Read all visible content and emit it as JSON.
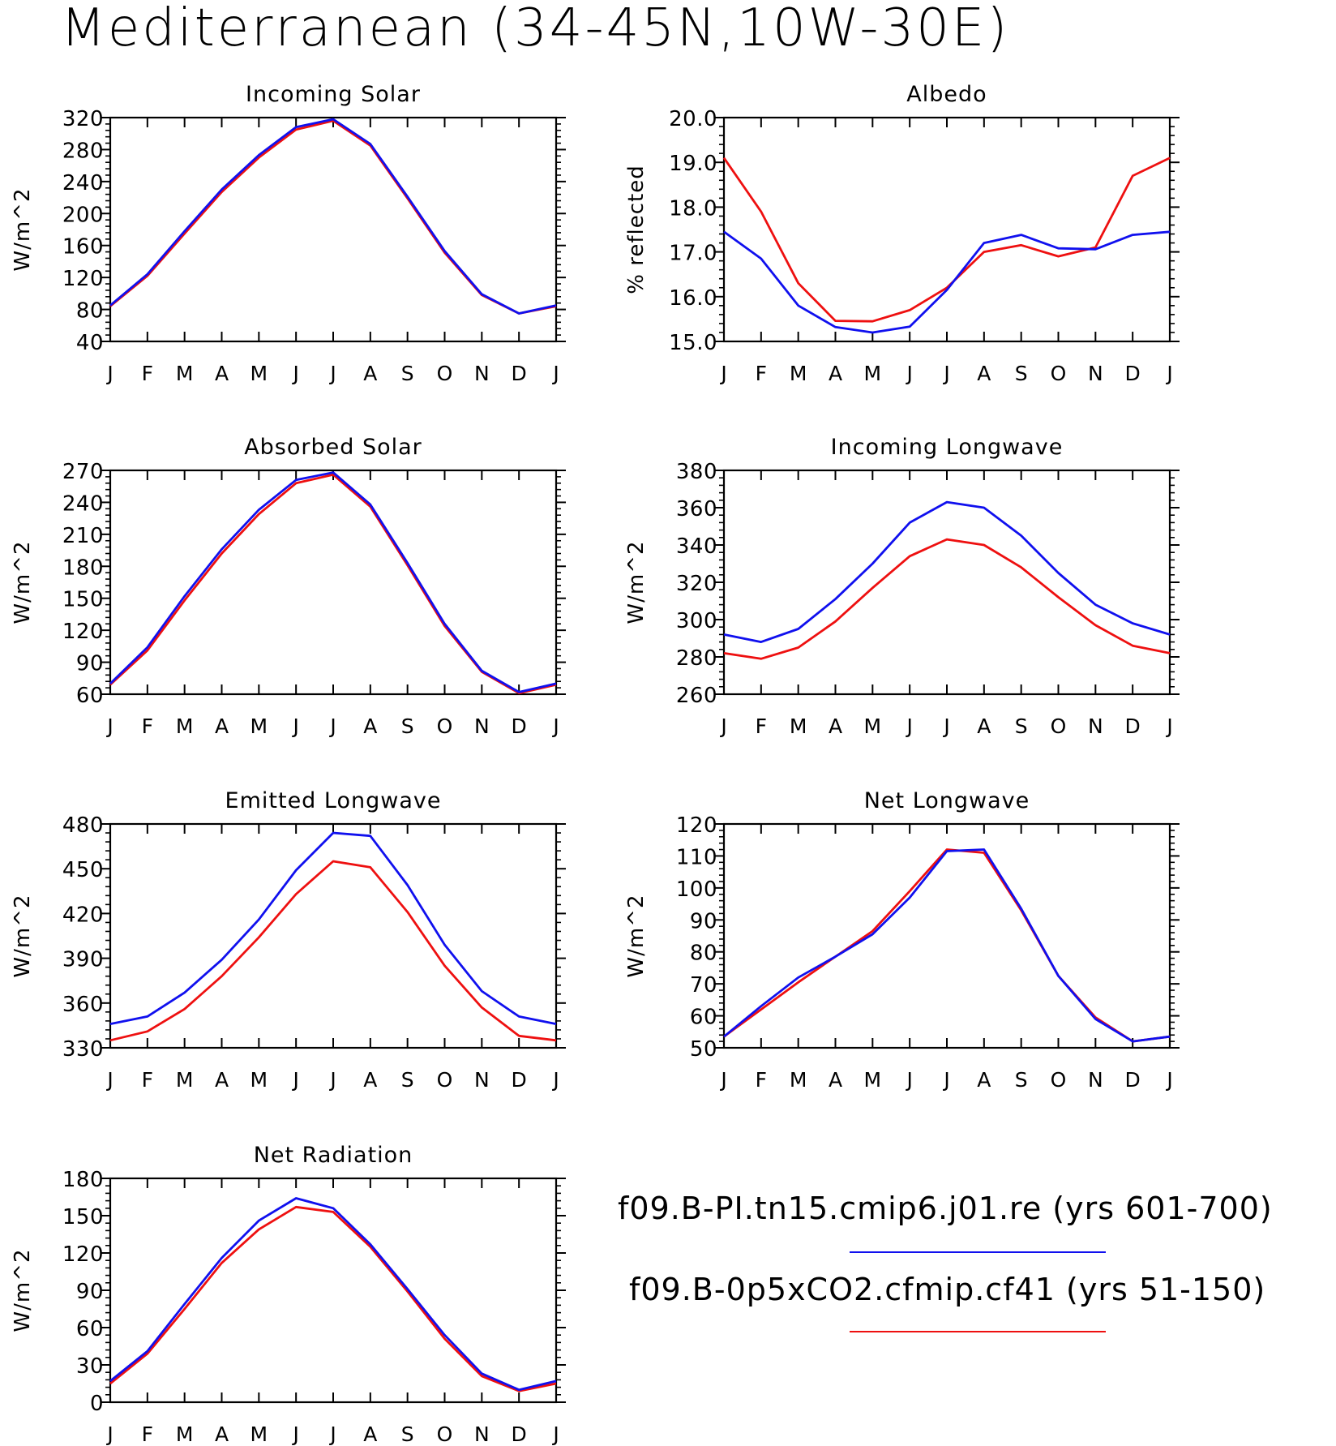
{
  "title": "Mediterranean (34-45N,10W-30E)",
  "colors": {
    "series_blue": "#1010ee",
    "series_red": "#ee1010"
  },
  "legend": [
    {
      "label": "f09.B-PI.tn15.cmip6.j01.re (yrs 601-700)",
      "color": "#1010ee"
    },
    {
      "label": "f09.B-0p5xCO2.cfmip.cf41 (yrs 51-150)",
      "color": "#ee1010"
    }
  ],
  "chart_data": [
    {
      "type": "line",
      "title": "Incoming Solar",
      "ylabel": "W/m^2",
      "ylim": [
        40,
        320
      ],
      "yticks": [
        40,
        80,
        120,
        160,
        200,
        240,
        280,
        320
      ],
      "yticklabels": [
        "40",
        "80",
        "120",
        "160",
        "200",
        "240",
        "280",
        "320"
      ],
      "categories": [
        "J",
        "F",
        "M",
        "A",
        "M",
        "J",
        "J",
        "A",
        "S",
        "O",
        "N",
        "D",
        "J"
      ],
      "series": [
        {
          "color": "blue",
          "values": [
            85,
            124,
            178,
            230,
            273,
            308,
            318,
            287,
            221,
            153,
            99,
            75,
            85
          ]
        },
        {
          "color": "red",
          "values": [
            84,
            122,
            175,
            227,
            270,
            305,
            316,
            285,
            219,
            151,
            98,
            75,
            84
          ]
        }
      ]
    },
    {
      "type": "line",
      "title": "Albedo",
      "ylabel": "% reflected",
      "ylim": [
        15,
        20
      ],
      "yticks": [
        15,
        16,
        17,
        18,
        19,
        20
      ],
      "yticklabels": [
        "15.0",
        "16.0",
        "17.0",
        "18.0",
        "19.0",
        "20.0"
      ],
      "categories": [
        "J",
        "F",
        "M",
        "A",
        "M",
        "J",
        "J",
        "A",
        "S",
        "O",
        "N",
        "D",
        "J"
      ],
      "series": [
        {
          "color": "blue",
          "values": [
            17.45,
            16.85,
            15.8,
            15.32,
            15.2,
            15.33,
            16.15,
            17.2,
            17.38,
            17.08,
            17.06,
            17.38,
            17.45
          ]
        },
        {
          "color": "red",
          "values": [
            19.1,
            17.9,
            16.3,
            15.46,
            15.45,
            15.7,
            16.2,
            17.0,
            17.15,
            16.9,
            17.1,
            18.7,
            19.1
          ]
        }
      ]
    },
    {
      "type": "line",
      "title": "Absorbed Solar",
      "ylabel": "W/m^2",
      "ylim": [
        60,
        270
      ],
      "yticks": [
        60,
        90,
        120,
        150,
        180,
        210,
        240,
        270
      ],
      "yticklabels": [
        "60",
        "90",
        "120",
        "150",
        "180",
        "210",
        "240",
        "270"
      ],
      "categories": [
        "J",
        "F",
        "M",
        "A",
        "M",
        "J",
        "J",
        "A",
        "S",
        "O",
        "N",
        "D",
        "J"
      ],
      "series": [
        {
          "color": "blue",
          "values": [
            70,
            104,
            152,
            196,
            233,
            261,
            268,
            238,
            183,
            126,
            82,
            62,
            70
          ]
        },
        {
          "color": "red",
          "values": [
            69,
            101,
            148,
            192,
            229,
            258,
            266,
            236,
            181,
            124,
            81,
            61,
            69
          ]
        }
      ]
    },
    {
      "type": "line",
      "title": "Incoming Longwave",
      "ylabel": "W/m^2",
      "ylim": [
        260,
        380
      ],
      "yticks": [
        260,
        280,
        300,
        320,
        340,
        360,
        380
      ],
      "yticklabels": [
        "260",
        "280",
        "300",
        "320",
        "340",
        "360",
        "380"
      ],
      "categories": [
        "J",
        "F",
        "M",
        "A",
        "M",
        "J",
        "J",
        "A",
        "S",
        "O",
        "N",
        "D",
        "J"
      ],
      "series": [
        {
          "color": "blue",
          "values": [
            292,
            288,
            295,
            311,
            330,
            352,
            363,
            360,
            345,
            325,
            308,
            298,
            292
          ]
        },
        {
          "color": "red",
          "values": [
            282,
            279,
            285,
            299,
            317,
            334,
            343,
            340,
            328,
            312,
            297,
            286,
            282
          ]
        }
      ]
    },
    {
      "type": "line",
      "title": "Emitted Longwave",
      "ylabel": "W/m^2",
      "ylim": [
        330,
        480
      ],
      "yticks": [
        330,
        360,
        390,
        420,
        450,
        480
      ],
      "yticklabels": [
        "330",
        "360",
        "390",
        "420",
        "450",
        "480"
      ],
      "categories": [
        "J",
        "F",
        "M",
        "A",
        "M",
        "J",
        "J",
        "A",
        "S",
        "O",
        "N",
        "D",
        "J"
      ],
      "series": [
        {
          "color": "blue",
          "values": [
            346,
            351,
            367,
            389,
            416,
            449,
            474,
            472,
            439,
            399,
            368,
            351,
            346
          ]
        },
        {
          "color": "red",
          "values": [
            335,
            341,
            356,
            378,
            404,
            433,
            455,
            451,
            421,
            385,
            357,
            338,
            335
          ]
        }
      ]
    },
    {
      "type": "line",
      "title": "Net Longwave",
      "ylabel": "W/m^2",
      "ylim": [
        50,
        120
      ],
      "yticks": [
        50,
        60,
        70,
        80,
        90,
        100,
        110,
        120
      ],
      "yticklabels": [
        "50",
        "60",
        "70",
        "80",
        "90",
        "100",
        "110",
        "120"
      ],
      "categories": [
        "J",
        "F",
        "M",
        "A",
        "M",
        "J",
        "J",
        "A",
        "S",
        "O",
        "N",
        "D",
        "J"
      ],
      "series": [
        {
          "color": "blue",
          "values": [
            53.5,
            63,
            72,
            78.5,
            85.5,
            97,
            111.5,
            112,
            93.5,
            72.5,
            59,
            52,
            53.5
          ]
        },
        {
          "color": "red",
          "values": [
            53.5,
            62,
            70.5,
            78.5,
            86.5,
            99,
            112,
            111,
            93,
            72.5,
            59.5,
            52,
            53.5
          ]
        }
      ]
    },
    {
      "type": "line",
      "title": "Net Radiation",
      "ylabel": "W/m^2",
      "ylim": [
        0,
        180
      ],
      "yticks": [
        0,
        30,
        60,
        90,
        120,
        150,
        180
      ],
      "yticklabels": [
        "0",
        "30",
        "60",
        "90",
        "120",
        "150",
        "180"
      ],
      "categories": [
        "J",
        "F",
        "M",
        "A",
        "M",
        "J",
        "J",
        "A",
        "S",
        "O",
        "N",
        "D",
        "J"
      ],
      "series": [
        {
          "color": "blue",
          "values": [
            17,
            41,
            79,
            116,
            146,
            164,
            156,
            127,
            91,
            54,
            23,
            10,
            17
          ]
        },
        {
          "color": "red",
          "values": [
            15,
            39,
            75,
            112,
            139,
            157,
            153,
            125,
            89,
            51,
            21,
            9,
            15
          ]
        }
      ]
    }
  ]
}
